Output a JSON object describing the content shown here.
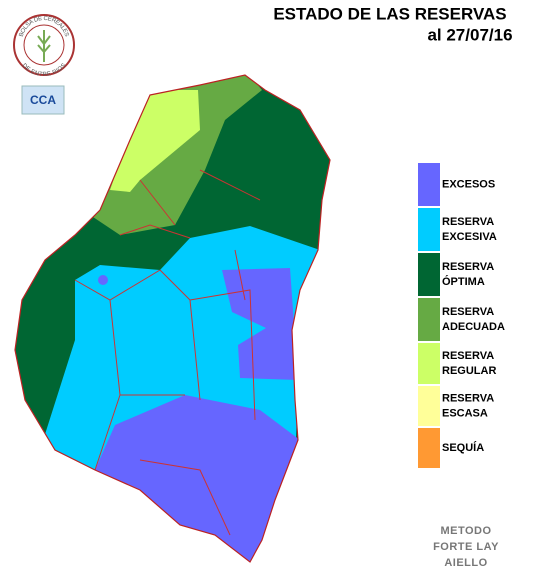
{
  "header": {
    "title": "ESTADO DE LAS RESERVAS",
    "date": "al 27/07/16"
  },
  "logo": {
    "ring_top": "BOLSA DE CEREALES",
    "ring_bottom": "DE ENTRE RIOS",
    "badge": "CCA"
  },
  "legend": [
    {
      "lines": [
        "EXCESOS"
      ],
      "color": "#6666ff"
    },
    {
      "lines": [
        "RESERVA",
        "EXCESIVA"
      ],
      "color": "#00ccff"
    },
    {
      "lines": [
        "RESERVA",
        "ÓPTIMA"
      ],
      "color": "#006633"
    },
    {
      "lines": [
        "RESERVA",
        "ADECUADA"
      ],
      "color": "#66aa44"
    },
    {
      "lines": [
        "RESERVA",
        "REGULAR"
      ],
      "color": "#ccff66"
    },
    {
      "lines": [
        "RESERVA",
        "ESCASA"
      ],
      "color": "#ffff99"
    },
    {
      "lines": [
        "SEQUÍA"
      ],
      "color": "#ff9933"
    }
  ],
  "footer": {
    "method": [
      "METODO",
      "FORTE LAY",
      "AIELLO"
    ]
  }
}
